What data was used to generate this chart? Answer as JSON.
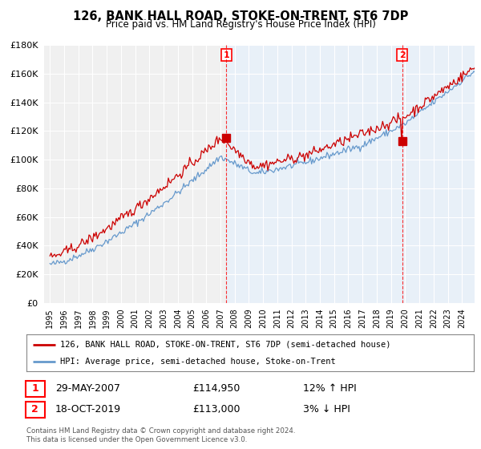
{
  "title": "126, BANK HALL ROAD, STOKE-ON-TRENT, ST6 7DP",
  "subtitle": "Price paid vs. HM Land Registry's House Price Index (HPI)",
  "legend_line1": "126, BANK HALL ROAD, STOKE-ON-TRENT, ST6 7DP (semi-detached house)",
  "legend_line2": "HPI: Average price, semi-detached house, Stoke-on-Trent",
  "footer": "Contains HM Land Registry data © Crown copyright and database right 2024.\nThis data is licensed under the Open Government Licence v3.0.",
  "annotation1": {
    "num": "1",
    "date": "29-MAY-2007",
    "price": "£114,950",
    "pct": "12% ↑ HPI"
  },
  "annotation2": {
    "num": "2",
    "date": "18-OCT-2019",
    "price": "£113,000",
    "pct": "3% ↓ HPI"
  },
  "vline1_x": 2007.41,
  "vline2_x": 2019.79,
  "sale1_x": 2007.41,
  "sale1_y": 114950,
  "sale2_x": 2019.79,
  "sale2_y": 113000,
  "ylim": [
    0,
    180000
  ],
  "yticks": [
    0,
    20000,
    40000,
    60000,
    80000,
    100000,
    120000,
    140000,
    160000,
    180000
  ],
  "xlim_left": 1994.6,
  "xlim_right": 2024.9,
  "background_color": "#ffffff",
  "plot_bg_color": "#e8f0f8",
  "plot_bg_left_color": "#f0f0f0",
  "red_color": "#cc0000",
  "blue_color": "#6699cc",
  "grid_color": "#ffffff",
  "shade_color": "#dde8f5"
}
